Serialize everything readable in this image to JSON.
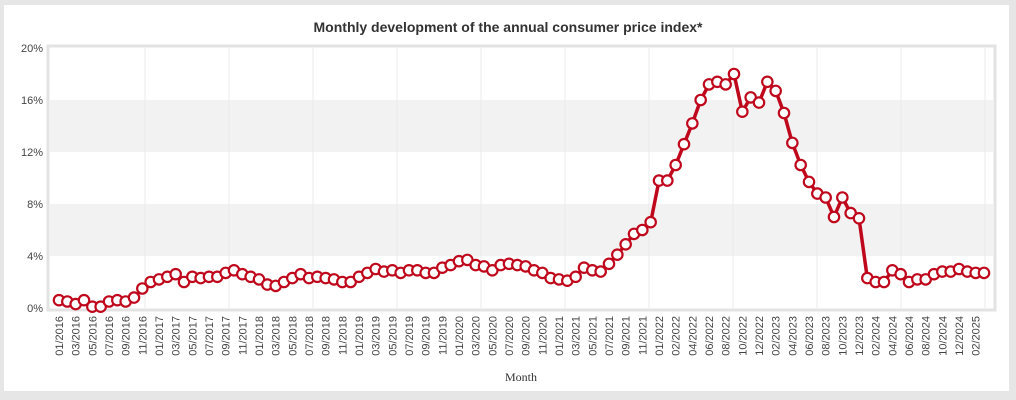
{
  "chart_data": {
    "type": "line",
    "title": "Monthly development of the annual consumer price index*",
    "xlabel": "Month",
    "ylabel": "",
    "ylim": [
      0,
      20
    ],
    "yticks": [
      0,
      4,
      8,
      12,
      16,
      20
    ],
    "ytick_labels": [
      "0%",
      "4%",
      "8%",
      "12%",
      "16%",
      "20%"
    ],
    "grid": "alternating horizontal bands, vertical gridlines",
    "legend": "none",
    "label_every": 2,
    "series": [
      {
        "name": "Annual consumer price index",
        "color": "#c0081c",
        "categories": [
          "01/2016",
          "02/2016",
          "03/2016",
          "04/2016",
          "05/2016",
          "06/2016",
          "07/2016",
          "08/2016",
          "09/2016",
          "10/2016",
          "11/2016",
          "12/2016",
          "01/2017",
          "02/2017",
          "03/2017",
          "04/2017",
          "05/2017",
          "06/2017",
          "07/2017",
          "08/2017",
          "09/2017",
          "10/2017",
          "11/2017",
          "12/2017",
          "01/2018",
          "02/2018",
          "03/2018",
          "04/2018",
          "05/2018",
          "06/2018",
          "07/2018",
          "08/2018",
          "09/2018",
          "10/2018",
          "11/2018",
          "12/2018",
          "01/2019",
          "02/2019",
          "03/2019",
          "04/2019",
          "05/2019",
          "06/2019",
          "07/2019",
          "08/2019",
          "09/2019",
          "10/2019",
          "11/2019",
          "12/2019",
          "01/2020",
          "02/2020",
          "03/2020",
          "04/2020",
          "05/2020",
          "06/2020",
          "07/2020",
          "08/2020",
          "09/2020",
          "10/2020",
          "11/2020",
          "12/2020",
          "01/2021",
          "02/2021",
          "03/2021",
          "04/2021",
          "05/2021",
          "06/2021",
          "07/2021",
          "08/2021",
          "09/2021",
          "10/2021",
          "11/2021",
          "12/2021",
          "01/2022",
          "01/2022",
          "02/2022",
          "03/2022",
          "04/2022",
          "05/2022",
          "06/2022",
          "07/2022",
          "08/2022",
          "09/2022",
          "10/2022",
          "11/2022",
          "12/2022",
          "01/2023",
          "02/2023",
          "03/2023",
          "04/2023",
          "05/2023",
          "06/2023",
          "07/2023",
          "08/2023",
          "09/2023",
          "10/2023",
          "11/2023",
          "12/2023",
          "01/2024",
          "02/2024",
          "03/2024",
          "04/2024",
          "05/2024",
          "06/2024",
          "07/2024",
          "08/2024",
          "09/2024",
          "10/2024",
          "11/2024",
          "12/2024",
          "01/2025",
          "02/2025",
          "03/2025"
        ],
        "values": [
          0.6,
          0.5,
          0.3,
          0.6,
          0.1,
          0.1,
          0.5,
          0.6,
          0.5,
          0.8,
          1.5,
          2.0,
          2.2,
          2.4,
          2.6,
          2.0,
          2.4,
          2.3,
          2.4,
          2.4,
          2.7,
          2.9,
          2.6,
          2.4,
          2.2,
          1.8,
          1.7,
          2.0,
          2.3,
          2.6,
          2.3,
          2.4,
          2.3,
          2.2,
          2.0,
          2.0,
          2.4,
          2.7,
          3.0,
          2.8,
          2.9,
          2.7,
          2.9,
          2.9,
          2.7,
          2.7,
          3.1,
          3.3,
          3.6,
          3.7,
          3.3,
          3.2,
          2.9,
          3.3,
          3.4,
          3.3,
          3.2,
          2.9,
          2.7,
          2.3,
          2.2,
          2.1,
          2.4,
          3.1,
          2.9,
          2.8,
          3.4,
          4.1,
          4.9,
          5.7,
          6.0,
          6.6,
          9.8,
          9.8,
          11.0,
          12.6,
          14.2,
          16.0,
          17.2,
          17.4,
          17.2,
          18.0,
          15.1,
          16.2,
          15.8,
          17.4,
          16.7,
          15.0,
          12.7,
          11.0,
          9.7,
          8.8,
          8.5,
          7.0,
          8.5,
          7.3,
          6.9,
          2.3,
          2.0,
          2.0,
          2.9,
          2.6,
          2.0,
          2.2,
          2.2,
          2.6,
          2.8,
          2.8,
          3.0,
          2.8,
          2.7,
          2.7
        ]
      }
    ]
  }
}
